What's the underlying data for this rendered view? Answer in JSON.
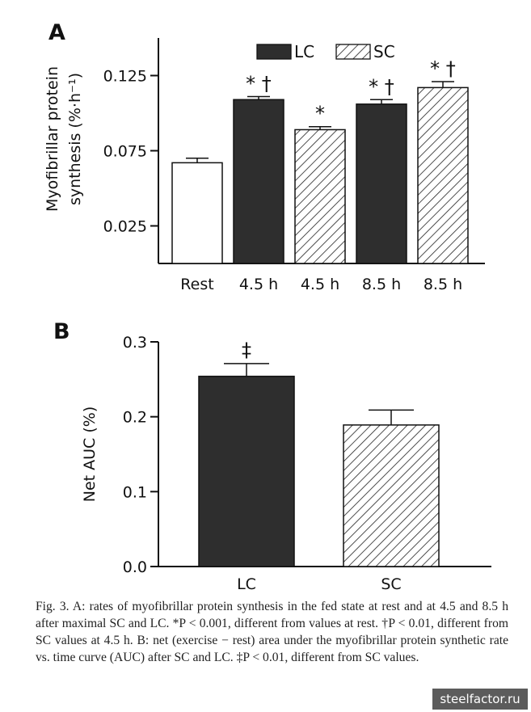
{
  "chart_data": [
    {
      "panel": "A",
      "type": "bar",
      "ylabel_line1": "Myofibrillar protein",
      "ylabel_line2": "synthesis (%·h⁻¹)",
      "ylim": [
        0,
        0.15
      ],
      "yticks": [
        0.025,
        0.075,
        0.125
      ],
      "ytick_labels": [
        "0.025",
        "0.075",
        "0.125"
      ],
      "categories": [
        "Rest",
        "4.5 h",
        "4.5 h",
        "8.5 h",
        "8.5 h"
      ],
      "bars": [
        {
          "category": "Rest",
          "group": "Rest",
          "value": 0.067,
          "error": 0.003,
          "annotation": ""
        },
        {
          "category": "4.5 h",
          "group": "LC",
          "value": 0.109,
          "error": 0.002,
          "annotation": "* †"
        },
        {
          "category": "4.5 h",
          "group": "SC",
          "value": 0.089,
          "error": 0.002,
          "annotation": "*"
        },
        {
          "category": "8.5 h",
          "group": "LC",
          "value": 0.106,
          "error": 0.003,
          "annotation": "* †"
        },
        {
          "category": "8.5 h",
          "group": "SC",
          "value": 0.117,
          "error": 0.004,
          "annotation": "* †"
        }
      ],
      "legend": [
        {
          "name": "LC",
          "style": "solid"
        },
        {
          "name": "SC",
          "style": "hatched"
        }
      ],
      "legend_position": "top"
    },
    {
      "panel": "B",
      "type": "bar",
      "ylabel": "Net AUC (%)",
      "ylim": [
        0,
        0.3
      ],
      "yticks": [
        0.0,
        0.1,
        0.2,
        0.3
      ],
      "ytick_labels": [
        "0.0",
        "0.1",
        "0.2",
        "0.3"
      ],
      "categories": [
        "LC",
        "SC"
      ],
      "bars": [
        {
          "category": "LC",
          "value": 0.254,
          "error": 0.017,
          "annotation": "‡"
        },
        {
          "category": "SC",
          "value": 0.189,
          "error": 0.02,
          "annotation": ""
        }
      ]
    }
  ],
  "colors": {
    "lc_fill": "#2e2e2e",
    "hatch": "#222222",
    "rest_fill": "#ffffff",
    "axis": "#111111"
  },
  "caption": {
    "fig": "Fig. 3.",
    "text": " A: rates of myofibrillar protein synthesis in the fed state at rest and at 4.5 and 8.5 h after maximal SC and LC. *P < 0.001, different from values at rest. †P < 0.01, different from SC values at 4.5 h. B: net (exercise − rest) area under the myofibrillar protein synthetic rate vs. time curve (AUC) after SC and LC. ‡P < 0.01, different from SC values."
  },
  "watermark": "steelfactor.ru"
}
